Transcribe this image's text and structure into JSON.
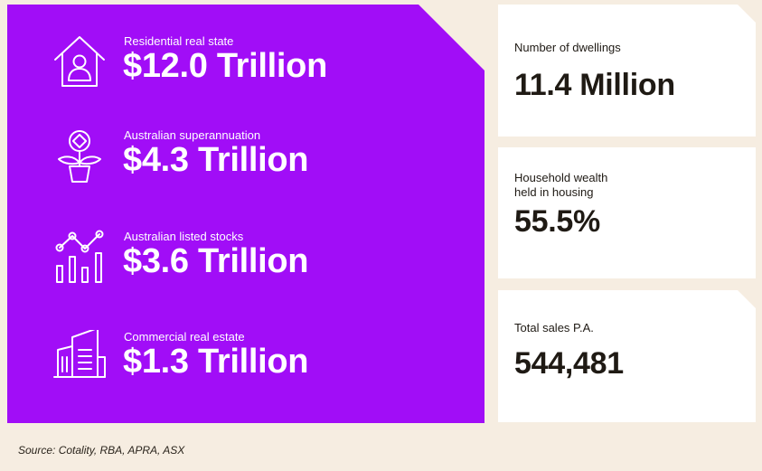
{
  "metrics": [
    {
      "icon": "house-person-icon",
      "label": "Residential real state",
      "value": "$12.0 Trillion"
    },
    {
      "icon": "plant-coin-icon",
      "label": "Australian superannuation",
      "value": "$4.3 Trillion"
    },
    {
      "icon": "stock-chart-icon",
      "label": "Australian listed stocks",
      "value": "$3.6 Trillion"
    },
    {
      "icon": "office-buildings-icon",
      "label": "Commercial real estate",
      "value": "$1.3 Trillion"
    }
  ],
  "cards": [
    {
      "label_lines": [
        "Number of dwellings"
      ],
      "value": "11.4 Million"
    },
    {
      "label_lines": [
        "Household wealth",
        "held in housing"
      ],
      "value": "55.5%"
    },
    {
      "label_lines": [
        "Total sales P.A."
      ],
      "value": "544,481"
    }
  ],
  "source": "Source: Cotality, RBA, APRA, ASX",
  "colors": {
    "panel": "#a10df7",
    "background": "#f6ede1",
    "card": "#ffffff",
    "text_dark": "#1f1a14"
  }
}
